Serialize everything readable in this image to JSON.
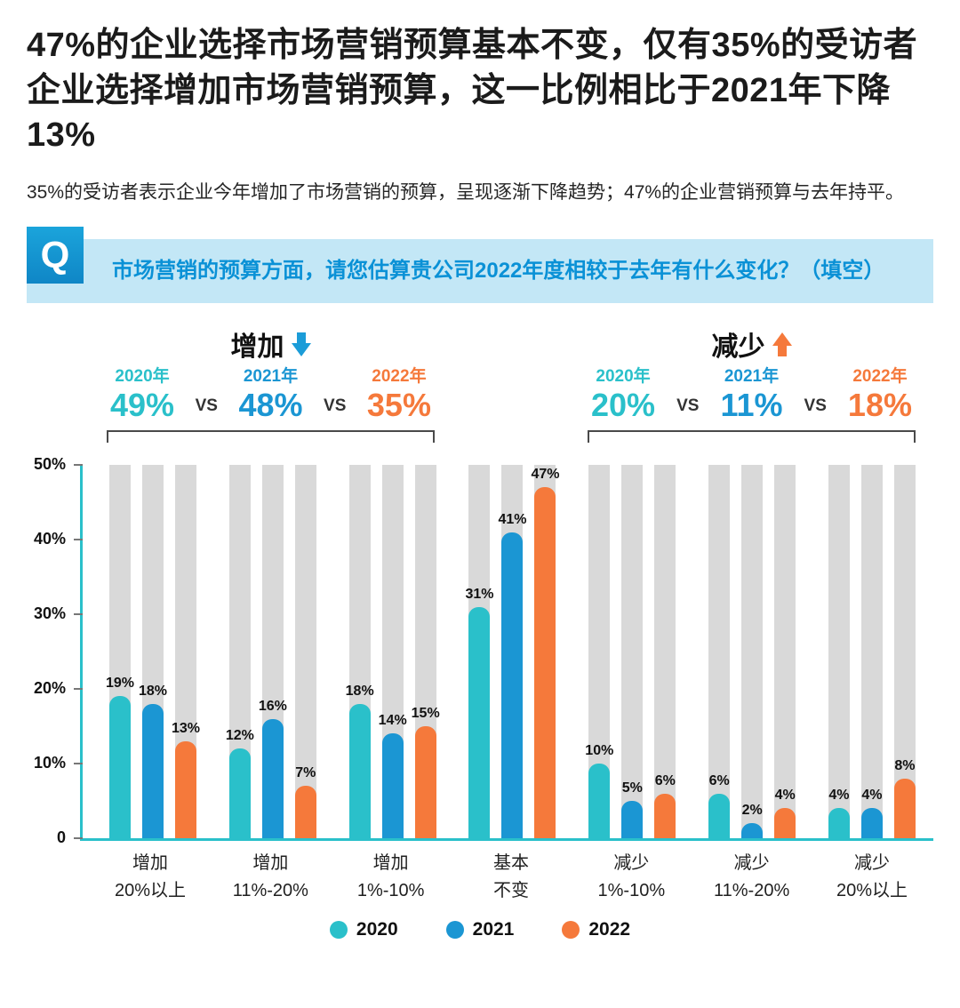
{
  "page": {
    "title": "47%的企业选择市场营销预算基本不变，仅有35%的受访者企业选择增加市场营销预算，这一比例相比于2021年下降13%",
    "intro": "35%的受访者表示企业今年增加了市场营销的预算，呈现逐渐下降趋势；47%的企业营销预算与去年持平。"
  },
  "question": {
    "icon": "Q",
    "text": "市场营销的预算方面，请您估算贵公司2022年度相较于去年有什么变化？（填空）"
  },
  "comparisons": [
    {
      "label": "增加",
      "arrow": "down",
      "arrow_color": "#1b9cd8",
      "items": [
        {
          "year": "2020年",
          "value": "49%",
          "color": "#2ac0ca"
        },
        {
          "year": "2021年",
          "value": "48%",
          "color": "#1b96d3"
        },
        {
          "year": "2022年",
          "value": "35%",
          "color": "#f5793b"
        }
      ]
    },
    {
      "label": "减少",
      "arrow": "up",
      "arrow_color": "#f5793b",
      "items": [
        {
          "year": "2020年",
          "value": "20%",
          "color": "#2ac0ca"
        },
        {
          "year": "2021年",
          "value": "11%",
          "color": "#1b96d3"
        },
        {
          "year": "2022年",
          "value": "18%",
          "color": "#f5793b"
        }
      ]
    }
  ],
  "chart_data": {
    "type": "bar",
    "categories": [
      [
        "增加",
        "20%以上"
      ],
      [
        "增加",
        "11%-20%"
      ],
      [
        "增加",
        "1%-10%"
      ],
      [
        "基本",
        "不变"
      ],
      [
        "减少",
        "1%-10%"
      ],
      [
        "减少",
        "11%-20%"
      ],
      [
        "减少",
        "20%以上"
      ]
    ],
    "series": [
      {
        "name": "2020",
        "color": "#2ac0ca",
        "values": [
          19,
          12,
          18,
          31,
          10,
          6,
          4
        ]
      },
      {
        "name": "2021",
        "color": "#1b96d3",
        "values": [
          18,
          16,
          14,
          41,
          5,
          2,
          4
        ]
      },
      {
        "name": "2022",
        "color": "#f5793b",
        "values": [
          13,
          7,
          15,
          47,
          6,
          4,
          8
        ]
      }
    ],
    "ylim": [
      0,
      50
    ],
    "yticks": [
      "50%",
      "40%",
      "30%",
      "20%",
      "10%",
      "0"
    ],
    "unit": "%",
    "vs_label": "VS",
    "track_color": "#d9d9d9",
    "axis_color": "#2ac0ca",
    "grid": false,
    "legend_position": "bottom"
  }
}
